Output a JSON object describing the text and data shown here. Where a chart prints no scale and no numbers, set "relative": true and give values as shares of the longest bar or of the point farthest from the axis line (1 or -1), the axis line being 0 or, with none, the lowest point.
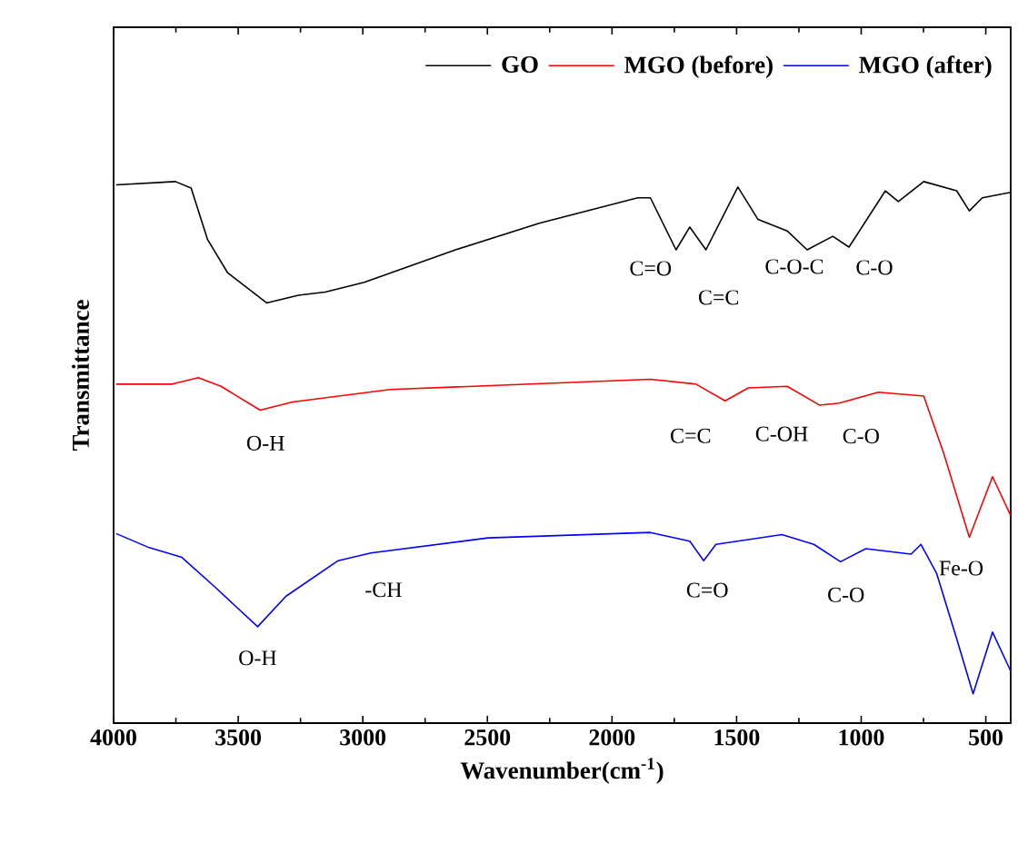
{
  "chart_data": {
    "type": "line",
    "relative": true,
    "xlabel": "Wavenumber(cm$^{-1}$)",
    "ylabel": "Transmittance",
    "xlim": [
      4000,
      400
    ],
    "xticks": [
      4000,
      3500,
      3000,
      2500,
      2000,
      1500,
      1000,
      500
    ],
    "legend": "top right",
    "grid": false,
    "series": [
      {
        "name": "GO",
        "color": "#000000",
        "x": [
          3990,
          3752,
          3689,
          3623,
          3543,
          3386,
          3258,
          3151,
          2994,
          2628,
          2292,
          1897,
          1846,
          1743,
          1688,
          1623,
          1495,
          1414,
          1297,
          1217,
          1114,
          1049,
          903,
          851,
          749,
          617,
          566,
          514,
          400
        ],
        "values": [
          0.994,
          1.0,
          0.988,
          0.893,
          0.832,
          0.776,
          0.79,
          0.796,
          0.814,
          0.874,
          0.923,
          0.97,
          0.97,
          0.874,
          0.916,
          0.874,
          0.99,
          0.93,
          0.909,
          0.874,
          0.899,
          0.879,
          0.983,
          0.963,
          1.0,
          0.983,
          0.946,
          0.97,
          0.98
        ]
      },
      {
        "name": "MGO (before)",
        "color": "#ff0000",
        "x": [
          3990,
          3765,
          3660,
          3569,
          3412,
          3282,
          2890,
          1846,
          1663,
          1546,
          1453,
          1297,
          1166,
          1088,
          931,
          749,
          668,
          566,
          473,
          400
        ],
        "values": [
          0.626,
          0.626,
          0.638,
          0.622,
          0.578,
          0.593,
          0.616,
          0.635,
          0.626,
          0.595,
          0.619,
          0.622,
          0.587,
          0.591,
          0.611,
          0.604,
          0.497,
          0.343,
          0.455,
          0.383
        ]
      },
      {
        "name": "MGO (after)",
        "color": "#0000ff",
        "x": [
          3990,
          3857,
          3726,
          3595,
          3422,
          3309,
          3099,
          2968,
          2497,
          1846,
          1688,
          1632,
          1583,
          1318,
          1190,
          1083,
          982,
          800,
          760,
          697,
          617,
          551,
          473,
          400
        ],
        "values": [
          0.35,
          0.324,
          0.306,
          0.252,
          0.178,
          0.234,
          0.3,
          0.314,
          0.342,
          0.352,
          0.336,
          0.3,
          0.33,
          0.348,
          0.33,
          0.298,
          0.322,
          0.312,
          0.33,
          0.276,
          0.156,
          0.054,
          0.168,
          0.096
        ]
      }
    ],
    "annotations": [
      {
        "text": "C=O",
        "x": 1743,
        "y": 0.874
      },
      {
        "text": "C=C",
        "x": 1623,
        "y": 0.874
      },
      {
        "text": "C-O-C",
        "x": 1217,
        "y": 0.874
      },
      {
        "text": "C-O",
        "x": 1049,
        "y": 0.879
      },
      {
        "text": "O-H",
        "x": 3412,
        "y": 0.578
      },
      {
        "text": "C=C",
        "x": 1546,
        "y": 0.595
      },
      {
        "text": "C-OH",
        "x": 1297,
        "y": 0.622
      },
      {
        "text": "C-O",
        "x": 1088,
        "y": 0.591
      },
      {
        "text": "O-H",
        "x": 3422,
        "y": 0.178
      },
      {
        "text": "-CH",
        "x": 2968,
        "y": 0.314
      },
      {
        "text": "C=O",
        "x": 1632,
        "y": 0.3
      },
      {
        "text": "C-O",
        "x": 1083,
        "y": 0.298
      },
      {
        "text": "Fe-O",
        "x": 697,
        "y": 0.276
      }
    ]
  }
}
